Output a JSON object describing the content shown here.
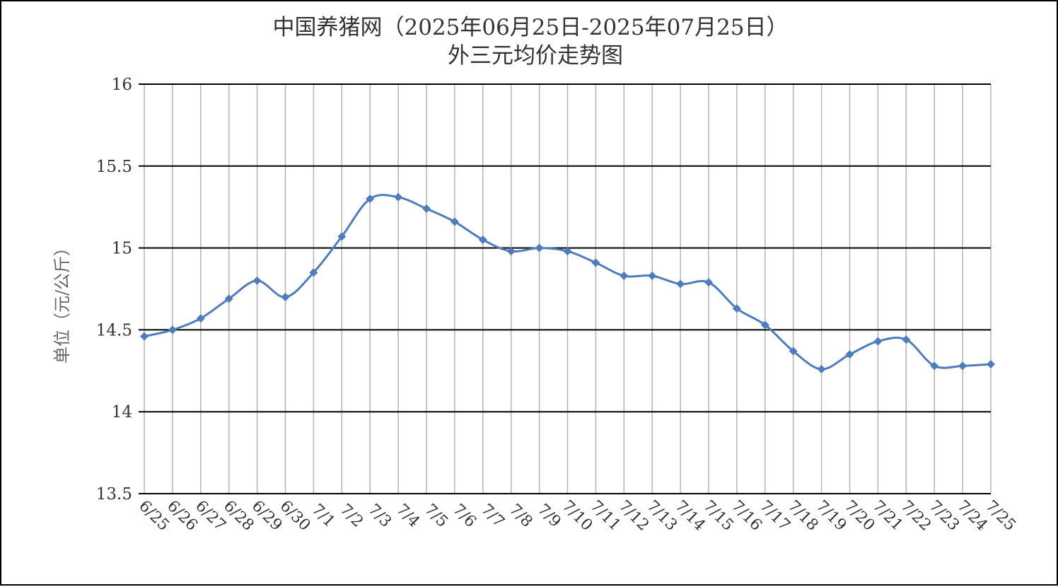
{
  "chart_data": {
    "type": "line",
    "title": "中国养猪网（2025年06月25日-2025年07月25日）",
    "subtitle": "外三元均价走势图",
    "xlabel": "",
    "ylabel": "单位（元/公斤）",
    "ylim": [
      13.5,
      16
    ],
    "yticks": [
      13.5,
      14,
      14.5,
      15,
      15.5,
      16
    ],
    "ytick_labels": [
      "13.5",
      "14",
      "14.5",
      "15",
      "15.5",
      "16"
    ],
    "grid": "horizontal-and-vertical",
    "legend": "none",
    "categories": [
      "6/25",
      "6/26",
      "6/27",
      "6/28",
      "6/29",
      "6/30",
      "7/1",
      "7/2",
      "7/3",
      "7/4",
      "7/5",
      "7/6",
      "7/7",
      "7/8",
      "7/9",
      "7/10",
      "7/11",
      "7/12",
      "7/13",
      "7/14",
      "7/15",
      "7/16",
      "7/17",
      "7/18",
      "7/19",
      "7/20",
      "7/21",
      "7/22",
      "7/23",
      "7/24",
      "7/25"
    ],
    "series": [
      {
        "values": [
          14.46,
          14.5,
          14.57,
          14.69,
          14.8,
          14.7,
          14.85,
          15.07,
          15.3,
          15.31,
          15.24,
          15.16,
          15.05,
          14.98,
          15.0,
          14.98,
          14.91,
          14.83,
          14.83,
          14.78,
          14.79,
          14.63,
          14.53,
          14.37,
          14.26,
          14.35,
          14.43,
          14.44,
          14.28,
          14.28,
          14.29
        ],
        "color": "#4f7cbd"
      }
    ]
  }
}
